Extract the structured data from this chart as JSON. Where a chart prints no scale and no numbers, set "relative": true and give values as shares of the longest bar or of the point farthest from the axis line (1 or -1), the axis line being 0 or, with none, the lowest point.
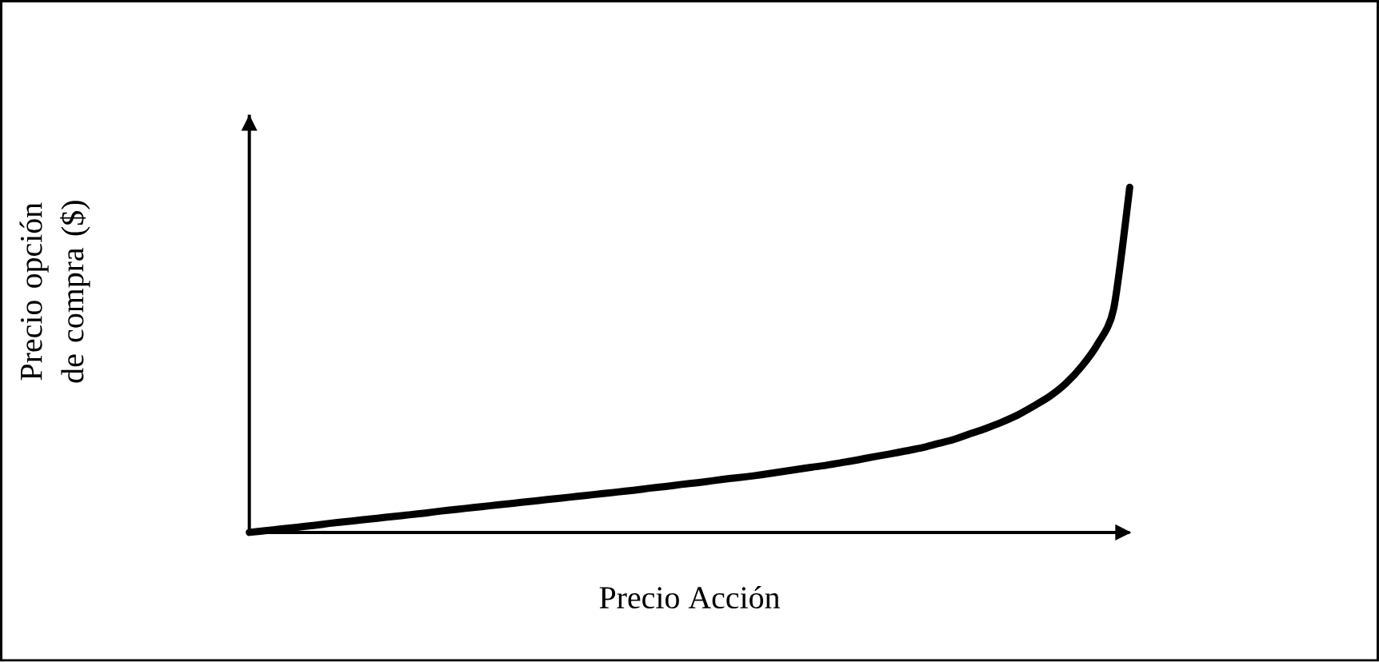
{
  "chart_data": {
    "type": "line",
    "relative": true,
    "xlabel": "Precio Acción",
    "ylabel": "Precio opción de compra ($)",
    "color": "#000000",
    "categories": [
      null,
      null,
      null,
      null,
      null,
      null,
      null,
      null,
      null,
      null,
      null,
      null,
      null,
      null,
      null,
      null,
      null,
      null,
      null,
      null,
      null,
      null,
      null,
      null,
      null,
      null,
      null,
      null,
      null,
      null,
      null,
      null,
      null,
      null,
      null,
      null,
      null,
      null,
      null,
      null,
      null,
      null,
      null,
      null,
      null,
      null,
      null,
      null,
      null,
      null,
      null,
      null,
      null,
      null,
      null,
      null
    ],
    "values": [
      0,
      0.005,
      0.01,
      0.015,
      0.02,
      0.026,
      0.031,
      0.036,
      0.041,
      0.046,
      0.051,
      0.056,
      0.062,
      0.067,
      0.072,
      0.077,
      0.082,
      0.087,
      0.092,
      0.097,
      0.102,
      0.107,
      0.112,
      0.117,
      0.122,
      0.128,
      0.133,
      0.139,
      0.144,
      0.15,
      0.156,
      0.161,
      0.167,
      0.174,
      0.181,
      0.188,
      0.194,
      0.202,
      0.21,
      0.219,
      0.227,
      0.236,
      0.245,
      0.257,
      0.269,
      0.285,
      0.301,
      0.319,
      0.34,
      0.366,
      0.394,
      0.431,
      0.481,
      0.546,
      0.648,
      1
    ]
  }
}
